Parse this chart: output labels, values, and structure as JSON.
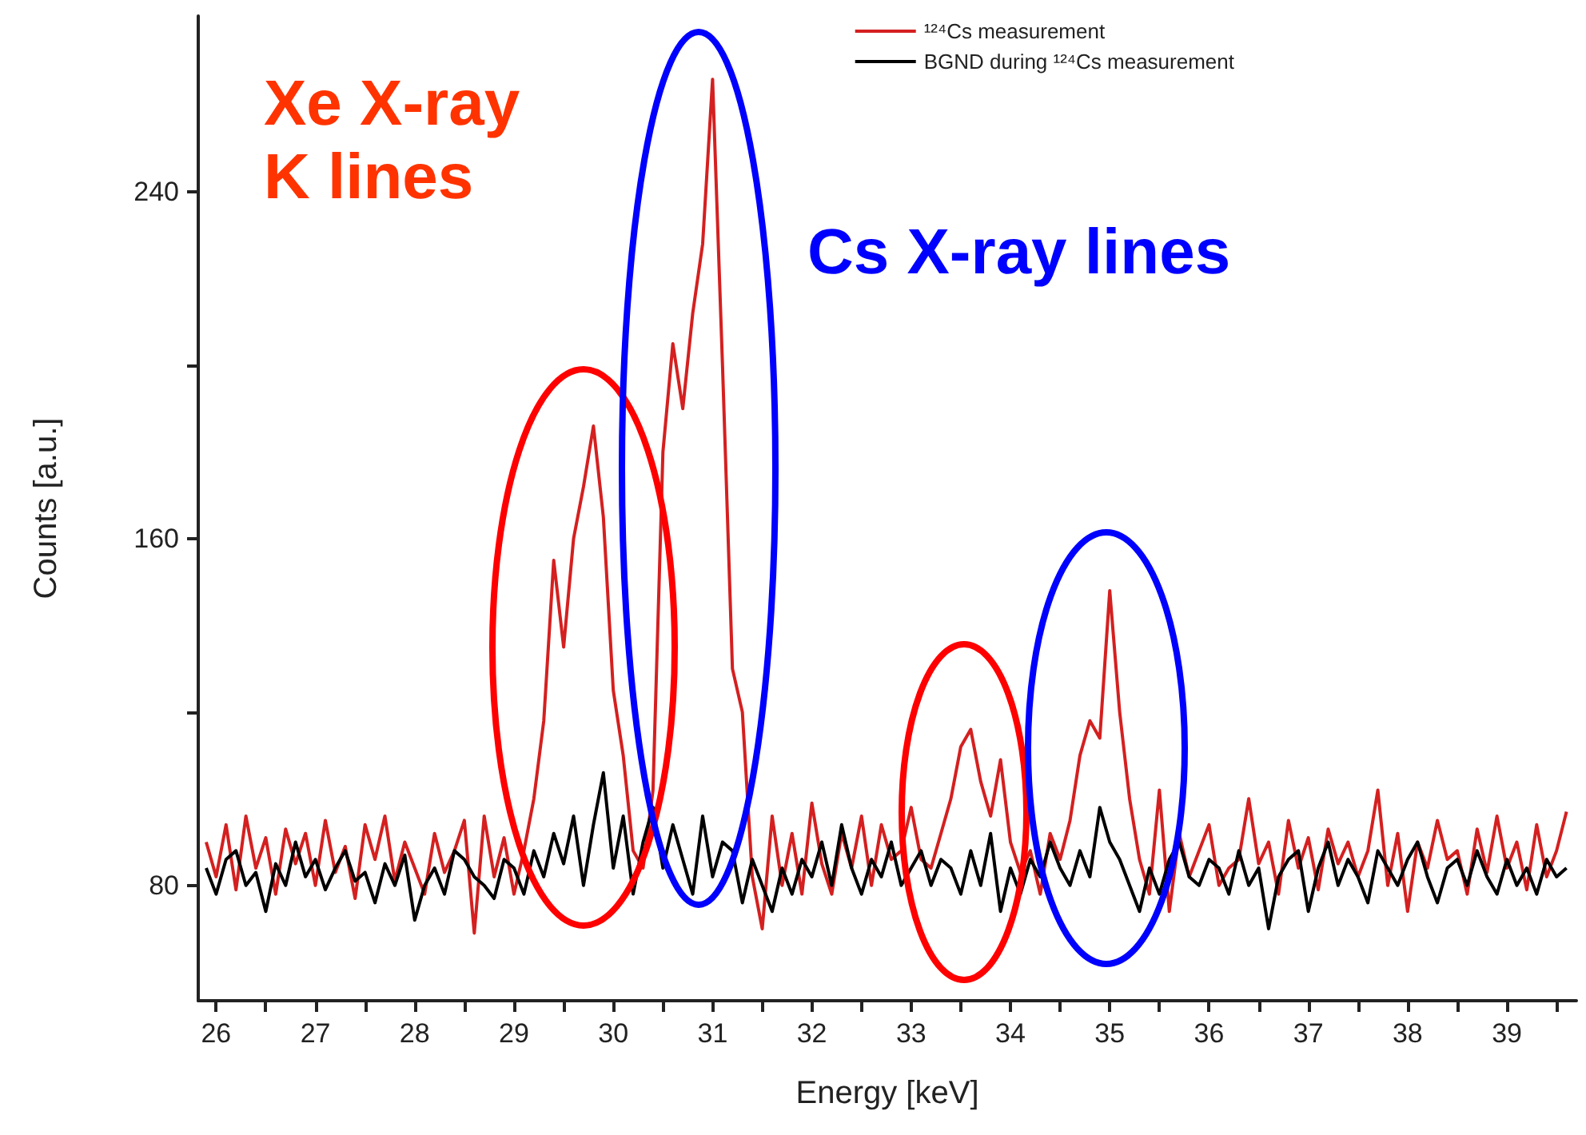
{
  "chart_data": {
    "type": "line",
    "xlabel": "Energy [keV]",
    "ylabel": "Counts [a.u.]",
    "annotations": [
      "Xe X-ray\nK lines",
      "Cs X-ray lines"
    ],
    "x": [
      25.9,
      26.0,
      26.1,
      26.2,
      26.3,
      26.4,
      26.5,
      26.6,
      26.7,
      26.8,
      26.9,
      27.0,
      27.1,
      27.2,
      27.3,
      27.4,
      27.5,
      27.6,
      27.7,
      27.8,
      27.9,
      28.0,
      28.1,
      28.2,
      28.3,
      28.4,
      28.5,
      28.6,
      28.7,
      28.8,
      28.9,
      29.0,
      29.1,
      29.2,
      29.3,
      29.4,
      29.5,
      29.6,
      29.7,
      29.8,
      29.9,
      30.0,
      30.1,
      30.2,
      30.3,
      30.4,
      30.5,
      30.6,
      30.7,
      30.8,
      30.9,
      31.0,
      31.1,
      31.2,
      31.3,
      31.4,
      31.5,
      31.6,
      31.7,
      31.8,
      31.9,
      32.0,
      32.1,
      32.2,
      32.3,
      32.4,
      32.5,
      32.6,
      32.7,
      32.8,
      32.9,
      33.0,
      33.1,
      33.2,
      33.3,
      33.4,
      33.5,
      33.6,
      33.7,
      33.8,
      33.9,
      34.0,
      34.1,
      34.2,
      34.3,
      34.4,
      34.5,
      34.6,
      34.7,
      34.8,
      34.9,
      35.0,
      35.1,
      35.2,
      35.3,
      35.4,
      35.5,
      35.6,
      35.7,
      35.8,
      35.9,
      36.0,
      36.1,
      36.2,
      36.3,
      36.4,
      36.5,
      36.6,
      36.7,
      36.8,
      36.9,
      37.0,
      37.1,
      37.2,
      37.3,
      37.4,
      37.5,
      37.6,
      37.7,
      37.8,
      37.9,
      38.0,
      38.1,
      38.2,
      38.3,
      38.4,
      38.5,
      38.6,
      38.7,
      38.8,
      38.9,
      39.0,
      39.1,
      39.2,
      39.3,
      39.4,
      39.5,
      39.6
    ],
    "series": [
      {
        "name": "¹²⁴Cs measurement",
        "color": "#d42020",
        "values": [
          90,
          82,
          94,
          79,
          96,
          84,
          91,
          78,
          93,
          85,
          92,
          80,
          95,
          83,
          89,
          77,
          94,
          86,
          96,
          81,
          90,
          84,
          78,
          92,
          83,
          88,
          95,
          69,
          96,
          82,
          91,
          78,
          88,
          100,
          118,
          155,
          135,
          160,
          172,
          186,
          165,
          125,
          110,
          88,
          84,
          102,
          180,
          205,
          190,
          212,
          228,
          266,
          200,
          130,
          120,
          82,
          70,
          96,
          80,
          92,
          78,
          99,
          85,
          78,
          92,
          84,
          96,
          80,
          94,
          86,
          88,
          98,
          86,
          84,
          92,
          100,
          112,
          116,
          104,
          96,
          109,
          90,
          83,
          88,
          78,
          92,
          86,
          95,
          110,
          118,
          114,
          148,
          120,
          100,
          86,
          78,
          102,
          74,
          92,
          82,
          88,
          94,
          80,
          84,
          86,
          100,
          85,
          90,
          78,
          95,
          84,
          91,
          79,
          93,
          85,
          90,
          82,
          88,
          102,
          80,
          92,
          74,
          90,
          84,
          95,
          86,
          88,
          78,
          93,
          83,
          96,
          84,
          90,
          79,
          94,
          82,
          88,
          97
        ]
      },
      {
        "name": "BGND during ¹²⁴Cs measurement",
        "color": "#000000",
        "values": [
          84,
          78,
          86,
          88,
          80,
          83,
          74,
          85,
          80,
          90,
          82,
          86,
          79,
          84,
          88,
          81,
          83,
          76,
          85,
          80,
          87,
          72,
          80,
          84,
          78,
          88,
          86,
          82,
          80,
          77,
          86,
          84,
          78,
          88,
          82,
          92,
          85,
          96,
          80,
          94,
          106,
          84,
          96,
          78,
          90,
          98,
          84,
          94,
          86,
          78,
          96,
          82,
          90,
          88,
          76,
          86,
          80,
          74,
          84,
          78,
          86,
          82,
          90,
          80,
          94,
          84,
          78,
          86,
          82,
          90,
          80,
          84,
          88,
          80,
          86,
          84,
          78,
          88,
          80,
          92,
          74,
          84,
          78,
          86,
          82,
          90,
          84,
          80,
          88,
          82,
          98,
          90,
          86,
          80,
          74,
          84,
          78,
          86,
          90,
          82,
          80,
          86,
          84,
          78,
          88,
          80,
          84,
          70,
          82,
          86,
          88,
          74,
          84,
          90,
          80,
          86,
          82,
          76,
          88,
          84,
          80,
          86,
          90,
          82,
          76,
          84,
          86,
          80,
          88,
          82,
          78,
          86,
          80,
          84,
          78,
          86,
          82,
          84
        ]
      }
    ],
    "xlim": [
      25.82,
      39.7
    ],
    "xticks": [
      26,
      {
        "value": 26.5,
        "label": null
      },
      27,
      {
        "value": 27.5,
        "label": null
      },
      28,
      {
        "value": 28.5,
        "label": null
      },
      29,
      {
        "value": 29.5,
        "label": null
      },
      30,
      {
        "value": 30.5,
        "label": null
      },
      31,
      {
        "value": 31.5,
        "label": null
      },
      32,
      {
        "value": 32.5,
        "label": null
      },
      33,
      {
        "value": 33.5,
        "label": null
      },
      34,
      {
        "value": 34.5,
        "label": null
      },
      35,
      {
        "value": 35.5,
        "label": null
      },
      36,
      {
        "value": 36.5,
        "label": null
      },
      37,
      {
        "value": 37.5,
        "label": null
      },
      38,
      {
        "value": 38.5,
        "label": null
      },
      39,
      {
        "value": 39.5,
        "label": null
      }
    ],
    "ylim": [
      53.4,
      280.6
    ],
    "yticks": [
      80,
      {
        "value": 120,
        "label": null
      },
      160,
      {
        "value": 200,
        "label": null
      },
      240
    ],
    "legend": "top right",
    "grid": false,
    "marker": "none",
    "line_style": "solid"
  }
}
